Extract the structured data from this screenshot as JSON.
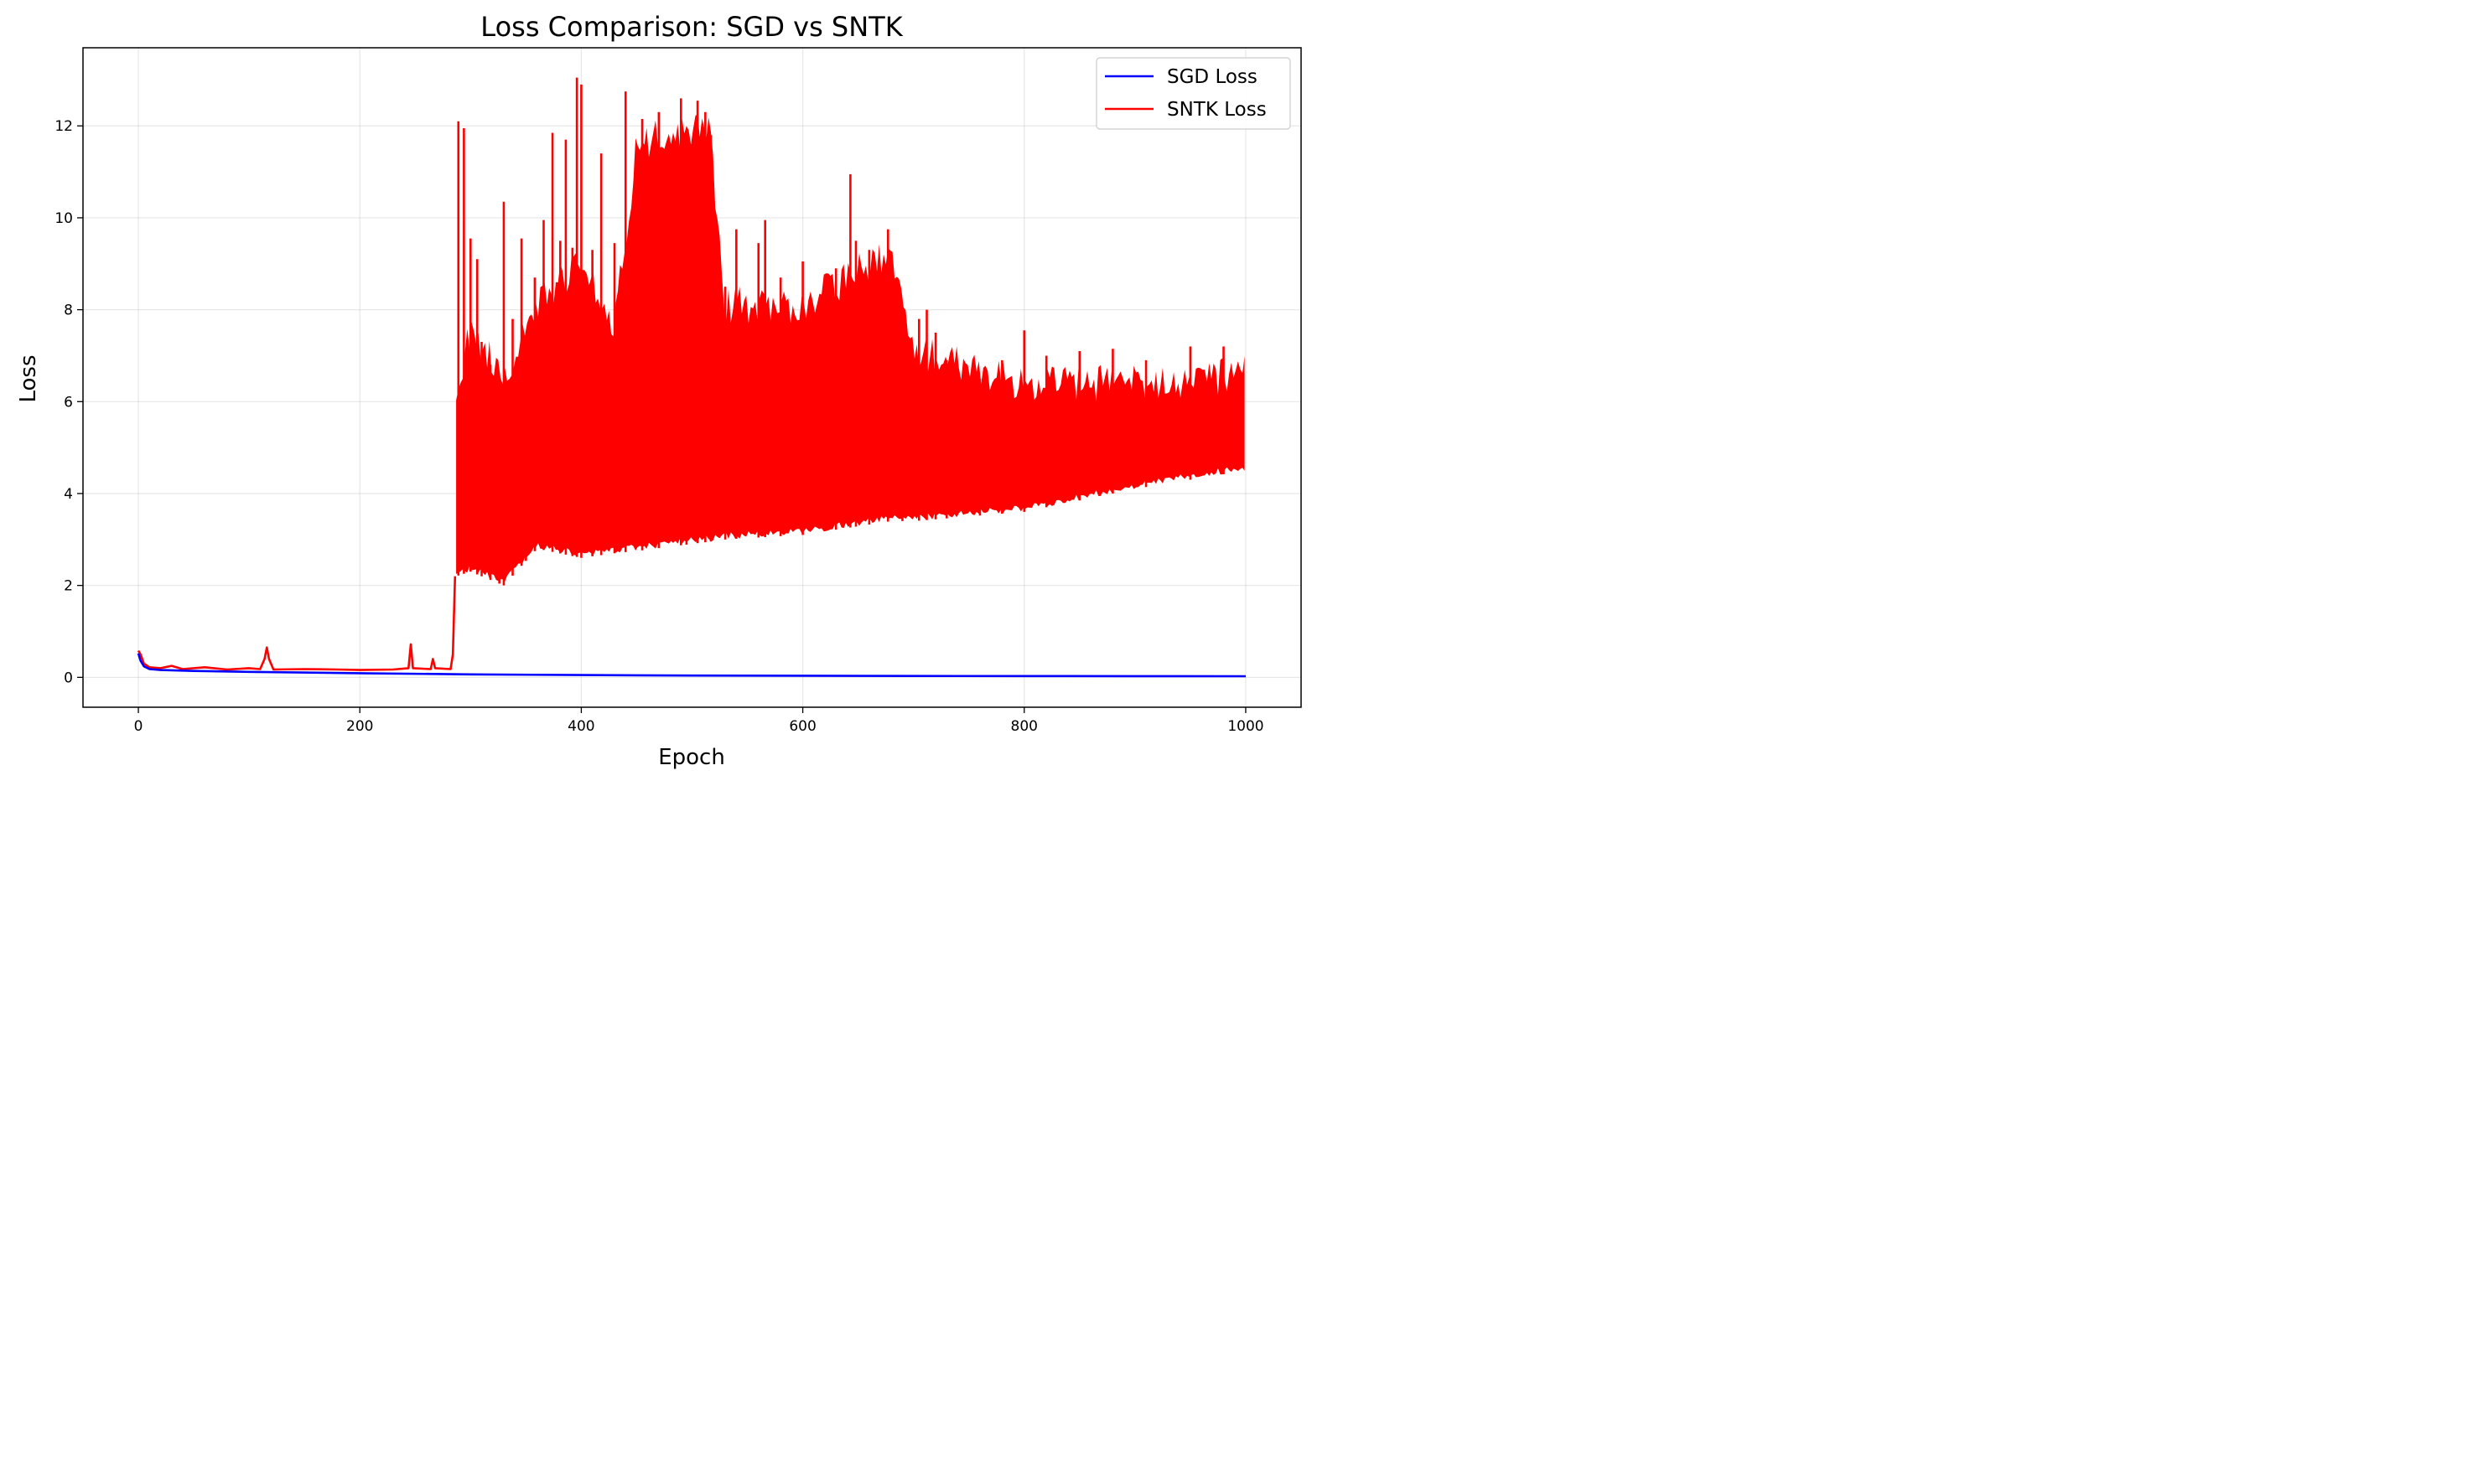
{
  "chart_data": {
    "type": "line",
    "title": "Loss Comparison: SGD vs SNTK",
    "xlabel": "Epoch",
    "ylabel": "Loss",
    "xlim": [
      -50,
      1050
    ],
    "ylim": [
      -0.65,
      13.7
    ],
    "xticks": [
      0,
      200,
      400,
      600,
      800,
      1000
    ],
    "yticks": [
      0,
      2,
      4,
      6,
      8,
      10,
      12
    ],
    "grid": true,
    "legend_position": "top-right",
    "series": [
      {
        "name": "SGD Loss",
        "color": "#0000ff",
        "points": [
          [
            0,
            0.52
          ],
          [
            2,
            0.36
          ],
          [
            5,
            0.24
          ],
          [
            10,
            0.18
          ],
          [
            20,
            0.16
          ],
          [
            50,
            0.14
          ],
          [
            100,
            0.12
          ],
          [
            200,
            0.09
          ],
          [
            300,
            0.065
          ],
          [
            400,
            0.05
          ],
          [
            500,
            0.04
          ],
          [
            600,
            0.035
          ],
          [
            700,
            0.03
          ],
          [
            800,
            0.028
          ],
          [
            900,
            0.026
          ],
          [
            1000,
            0.025
          ]
        ]
      },
      {
        "name": "SNTK Loss",
        "color": "#ff0000",
        "early_points": [
          [
            0,
            0.58
          ],
          [
            2,
            0.5
          ],
          [
            5,
            0.3
          ],
          [
            10,
            0.22
          ],
          [
            20,
            0.2
          ],
          [
            30,
            0.25
          ],
          [
            40,
            0.18
          ],
          [
            60,
            0.22
          ],
          [
            80,
            0.17
          ],
          [
            100,
            0.2
          ],
          [
            110,
            0.18
          ],
          [
            114,
            0.4
          ],
          [
            116,
            0.65
          ],
          [
            118,
            0.4
          ],
          [
            122,
            0.17
          ],
          [
            150,
            0.18
          ],
          [
            180,
            0.17
          ],
          [
            200,
            0.16
          ],
          [
            230,
            0.17
          ],
          [
            244,
            0.2
          ],
          [
            246,
            0.72
          ],
          [
            248,
            0.2
          ],
          [
            264,
            0.18
          ],
          [
            266,
            0.4
          ],
          [
            268,
            0.2
          ],
          [
            282,
            0.18
          ],
          [
            284,
            0.5
          ],
          [
            286,
            2.2
          ]
        ],
        "envelope": [
          {
            "x": 287,
            "lo": 2.2,
            "hi": 6.3
          },
          {
            "x": 300,
            "lo": 2.3,
            "hi": 8.0
          },
          {
            "x": 330,
            "lo": 2.0,
            "hi": 7.0
          },
          {
            "x": 360,
            "lo": 2.8,
            "hi": 8.5
          },
          {
            "x": 400,
            "lo": 2.6,
            "hi": 9.5
          },
          {
            "x": 430,
            "lo": 2.7,
            "hi": 8.0
          },
          {
            "x": 450,
            "lo": 2.75,
            "hi": 12.0
          },
          {
            "x": 515,
            "lo": 2.95,
            "hi": 12.5
          },
          {
            "x": 530,
            "lo": 3.0,
            "hi": 8.5
          },
          {
            "x": 600,
            "lo": 3.1,
            "hi": 8.5
          },
          {
            "x": 680,
            "lo": 3.4,
            "hi": 9.7
          },
          {
            "x": 700,
            "lo": 3.4,
            "hi": 7.5
          },
          {
            "x": 800,
            "lo": 3.6,
            "hi": 6.8
          },
          {
            "x": 900,
            "lo": 4.1,
            "hi": 6.8
          },
          {
            "x": 1000,
            "lo": 4.5,
            "hi": 7.0
          }
        ],
        "spikes": [
          [
            289,
            12.1
          ],
          [
            294,
            11.95
          ],
          [
            300,
            9.55
          ],
          [
            306,
            9.1
          ],
          [
            310,
            7.3
          ],
          [
            318,
            6.8
          ],
          [
            326,
            6.1
          ],
          [
            330,
            10.35
          ],
          [
            338,
            7.8
          ],
          [
            346,
            9.55
          ],
          [
            350,
            6.6
          ],
          [
            358,
            8.7
          ],
          [
            366,
            9.95
          ],
          [
            374,
            11.85
          ],
          [
            381,
            9.5
          ],
          [
            386,
            11.7
          ],
          [
            392,
            9.35
          ],
          [
            396,
            13.05
          ],
          [
            400,
            12.9
          ],
          [
            410,
            9.3
          ],
          [
            418,
            11.4
          ],
          [
            430,
            9.45
          ],
          [
            440,
            12.75
          ],
          [
            455,
            12.15
          ],
          [
            470,
            12.3
          ],
          [
            490,
            12.6
          ],
          [
            495,
            9.5
          ],
          [
            505,
            12.55
          ],
          [
            512,
            12.3
          ],
          [
            517,
            11.8
          ],
          [
            530,
            8.5
          ],
          [
            540,
            9.75
          ],
          [
            560,
            9.45
          ],
          [
            566,
            9.95
          ],
          [
            580,
            8.7
          ],
          [
            600,
            9.05
          ],
          [
            630,
            8.9
          ],
          [
            643,
            10.95
          ],
          [
            648,
            9.5
          ],
          [
            660,
            9.3
          ],
          [
            677,
            9.75
          ],
          [
            690,
            7.6
          ],
          [
            705,
            7.8
          ],
          [
            712,
            8.0
          ],
          [
            720,
            7.5
          ],
          [
            730,
            6.9
          ],
          [
            760,
            6.5
          ],
          [
            780,
            6.9
          ],
          [
            800,
            7.55
          ],
          [
            820,
            7.0
          ],
          [
            850,
            7.1
          ],
          [
            880,
            7.15
          ],
          [
            910,
            6.9
          ],
          [
            950,
            7.2
          ],
          [
            980,
            7.2
          ]
        ]
      }
    ]
  }
}
